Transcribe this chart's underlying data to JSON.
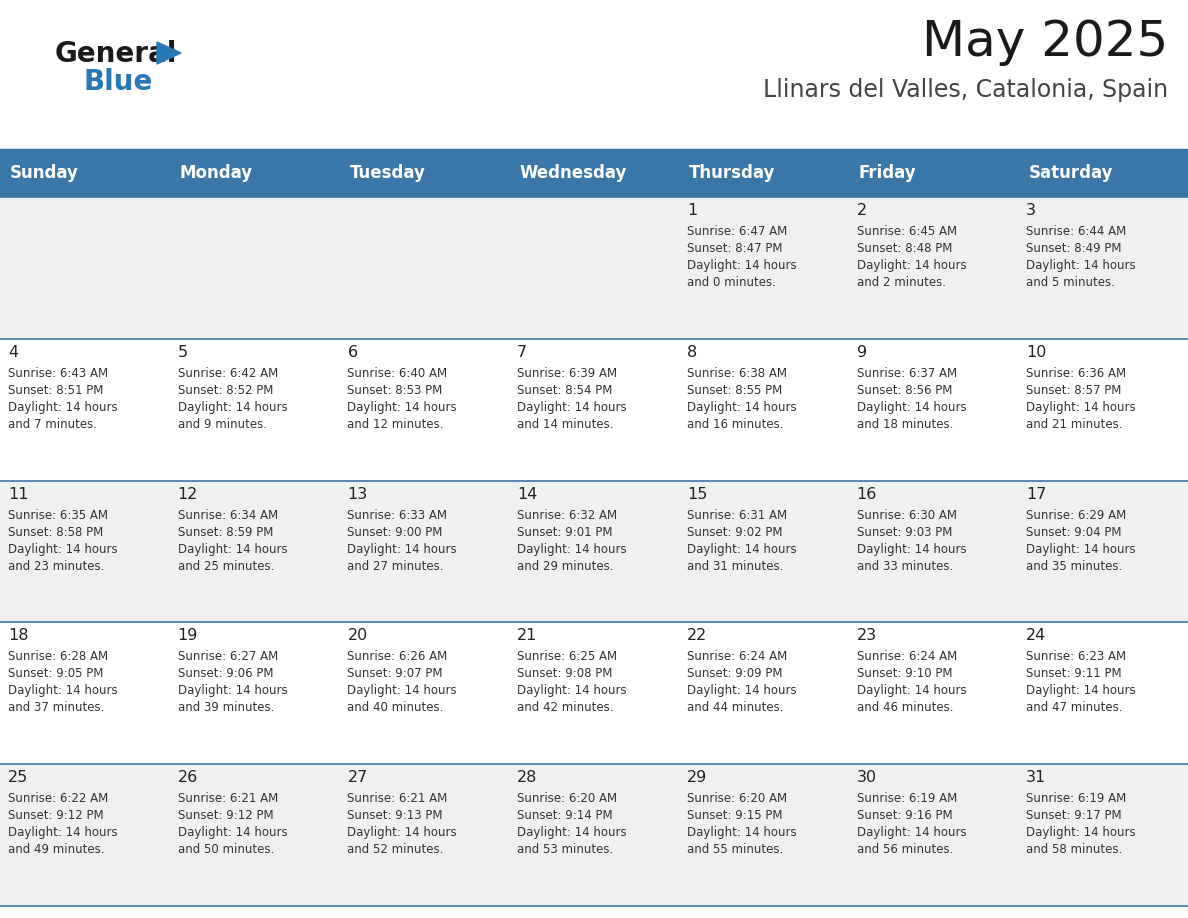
{
  "title": "May 2025",
  "subtitle": "Llinars del Valles, Catalonia, Spain",
  "days_of_week": [
    "Sunday",
    "Monday",
    "Tuesday",
    "Wednesday",
    "Thursday",
    "Friday",
    "Saturday"
  ],
  "header_bg": "#3a76a8",
  "header_text": "#ffffff",
  "row_bg_odd": "#f0f0f0",
  "row_bg_even": "#ffffff",
  "cell_text_color": "#333333",
  "day_num_color": "#222222",
  "grid_line_color": "#3a76a8",
  "title_color": "#1a1a1a",
  "subtitle_color": "#444444",
  "logo_general_color": "#1a1a1a",
  "logo_blue_color": "#2878b4",
  "weeks": [
    [
      {
        "day": null,
        "info": null
      },
      {
        "day": null,
        "info": null
      },
      {
        "day": null,
        "info": null
      },
      {
        "day": null,
        "info": null
      },
      {
        "day": "1",
        "info": "Sunrise: 6:47 AM\nSunset: 8:47 PM\nDaylight: 14 hours\nand 0 minutes."
      },
      {
        "day": "2",
        "info": "Sunrise: 6:45 AM\nSunset: 8:48 PM\nDaylight: 14 hours\nand 2 minutes."
      },
      {
        "day": "3",
        "info": "Sunrise: 6:44 AM\nSunset: 8:49 PM\nDaylight: 14 hours\nand 5 minutes."
      }
    ],
    [
      {
        "day": "4",
        "info": "Sunrise: 6:43 AM\nSunset: 8:51 PM\nDaylight: 14 hours\nand 7 minutes."
      },
      {
        "day": "5",
        "info": "Sunrise: 6:42 AM\nSunset: 8:52 PM\nDaylight: 14 hours\nand 9 minutes."
      },
      {
        "day": "6",
        "info": "Sunrise: 6:40 AM\nSunset: 8:53 PM\nDaylight: 14 hours\nand 12 minutes."
      },
      {
        "day": "7",
        "info": "Sunrise: 6:39 AM\nSunset: 8:54 PM\nDaylight: 14 hours\nand 14 minutes."
      },
      {
        "day": "8",
        "info": "Sunrise: 6:38 AM\nSunset: 8:55 PM\nDaylight: 14 hours\nand 16 minutes."
      },
      {
        "day": "9",
        "info": "Sunrise: 6:37 AM\nSunset: 8:56 PM\nDaylight: 14 hours\nand 18 minutes."
      },
      {
        "day": "10",
        "info": "Sunrise: 6:36 AM\nSunset: 8:57 PM\nDaylight: 14 hours\nand 21 minutes."
      }
    ],
    [
      {
        "day": "11",
        "info": "Sunrise: 6:35 AM\nSunset: 8:58 PM\nDaylight: 14 hours\nand 23 minutes."
      },
      {
        "day": "12",
        "info": "Sunrise: 6:34 AM\nSunset: 8:59 PM\nDaylight: 14 hours\nand 25 minutes."
      },
      {
        "day": "13",
        "info": "Sunrise: 6:33 AM\nSunset: 9:00 PM\nDaylight: 14 hours\nand 27 minutes."
      },
      {
        "day": "14",
        "info": "Sunrise: 6:32 AM\nSunset: 9:01 PM\nDaylight: 14 hours\nand 29 minutes."
      },
      {
        "day": "15",
        "info": "Sunrise: 6:31 AM\nSunset: 9:02 PM\nDaylight: 14 hours\nand 31 minutes."
      },
      {
        "day": "16",
        "info": "Sunrise: 6:30 AM\nSunset: 9:03 PM\nDaylight: 14 hours\nand 33 minutes."
      },
      {
        "day": "17",
        "info": "Sunrise: 6:29 AM\nSunset: 9:04 PM\nDaylight: 14 hours\nand 35 minutes."
      }
    ],
    [
      {
        "day": "18",
        "info": "Sunrise: 6:28 AM\nSunset: 9:05 PM\nDaylight: 14 hours\nand 37 minutes."
      },
      {
        "day": "19",
        "info": "Sunrise: 6:27 AM\nSunset: 9:06 PM\nDaylight: 14 hours\nand 39 minutes."
      },
      {
        "day": "20",
        "info": "Sunrise: 6:26 AM\nSunset: 9:07 PM\nDaylight: 14 hours\nand 40 minutes."
      },
      {
        "day": "21",
        "info": "Sunrise: 6:25 AM\nSunset: 9:08 PM\nDaylight: 14 hours\nand 42 minutes."
      },
      {
        "day": "22",
        "info": "Sunrise: 6:24 AM\nSunset: 9:09 PM\nDaylight: 14 hours\nand 44 minutes."
      },
      {
        "day": "23",
        "info": "Sunrise: 6:24 AM\nSunset: 9:10 PM\nDaylight: 14 hours\nand 46 minutes."
      },
      {
        "day": "24",
        "info": "Sunrise: 6:23 AM\nSunset: 9:11 PM\nDaylight: 14 hours\nand 47 minutes."
      }
    ],
    [
      {
        "day": "25",
        "info": "Sunrise: 6:22 AM\nSunset: 9:12 PM\nDaylight: 14 hours\nand 49 minutes."
      },
      {
        "day": "26",
        "info": "Sunrise: 6:21 AM\nSunset: 9:12 PM\nDaylight: 14 hours\nand 50 minutes."
      },
      {
        "day": "27",
        "info": "Sunrise: 6:21 AM\nSunset: 9:13 PM\nDaylight: 14 hours\nand 52 minutes."
      },
      {
        "day": "28",
        "info": "Sunrise: 6:20 AM\nSunset: 9:14 PM\nDaylight: 14 hours\nand 53 minutes."
      },
      {
        "day": "29",
        "info": "Sunrise: 6:20 AM\nSunset: 9:15 PM\nDaylight: 14 hours\nand 55 minutes."
      },
      {
        "day": "30",
        "info": "Sunrise: 6:19 AM\nSunset: 9:16 PM\nDaylight: 14 hours\nand 56 minutes."
      },
      {
        "day": "31",
        "info": "Sunrise: 6:19 AM\nSunset: 9:17 PM\nDaylight: 14 hours\nand 58 minutes."
      }
    ]
  ]
}
